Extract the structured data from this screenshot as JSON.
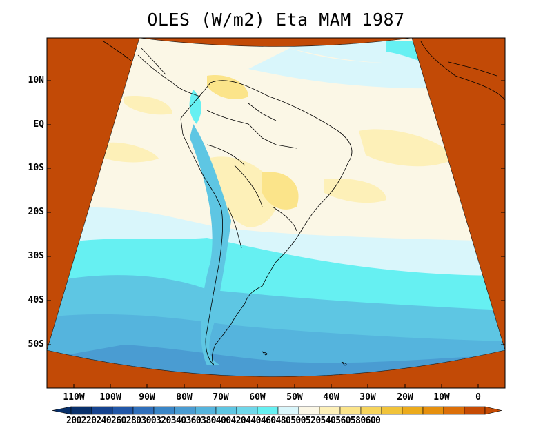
{
  "title": "OLES (W/m2) Eta MAM 1987",
  "lat_labels": [
    "10N",
    "EQ",
    "10S",
    "20S",
    "30S",
    "40S",
    "50S"
  ],
  "lon_labels": [
    "110W",
    "100W",
    "90W",
    "80W",
    "70W",
    "60W",
    "50W",
    "40W",
    "30W",
    "20W",
    "10W",
    "0"
  ],
  "colorbar": {
    "labels": [
      "200",
      "220",
      "240",
      "260",
      "280",
      "300",
      "320",
      "340",
      "360",
      "380",
      "400",
      "420",
      "440",
      "460",
      "480",
      "500",
      "520",
      "540",
      "560",
      "580",
      "600"
    ],
    "colors": [
      "#08306b",
      "#15438f",
      "#2157a8",
      "#2f6fbb",
      "#3a86c7",
      "#4a9cd2",
      "#55b4dd",
      "#5ec6e3",
      "#6fd7ea",
      "#66f0f2",
      "#d9f6fb",
      "#fbf7e6",
      "#fdf0b8",
      "#fbe48a",
      "#f6d45c",
      "#f1c33a",
      "#ecab1c",
      "#e6900e",
      "#dc6f09",
      "#c64b04"
    ]
  },
  "palette": {
    "outside_domain": "#c24a06",
    "land_lines": "#000000",
    "band_colors": [
      "#fbf7e6",
      "#fdf0b8",
      "#d9f6fb",
      "#66f0f2",
      "#5ec6e3",
      "#55b4dd",
      "#4a9cd2"
    ]
  }
}
